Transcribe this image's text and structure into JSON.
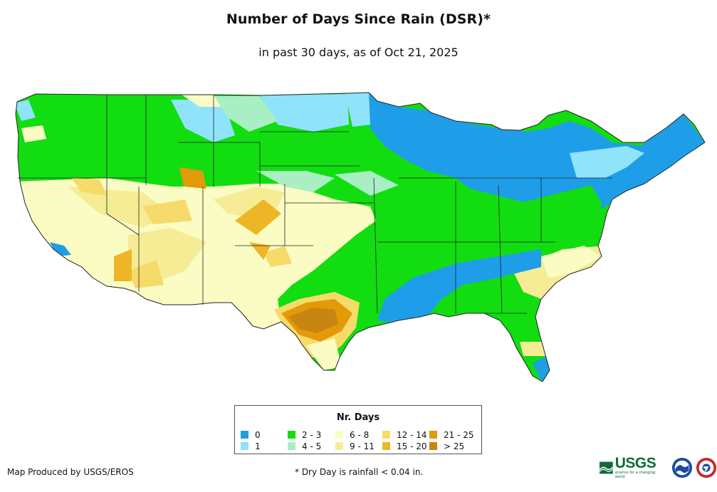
{
  "header": {
    "title": "Number of Days Since Rain (DSR)*",
    "subtitle": "in past 30 days, as of Oct 21, 2025"
  },
  "legend": {
    "title": "Nr. Days",
    "items": [
      {
        "label": "0",
        "color": "#1e9ee8"
      },
      {
        "label": "1",
        "color": "#8fe3fb"
      },
      {
        "label": "2 - 3",
        "color": "#11dd11"
      },
      {
        "label": "4 - 5",
        "color": "#a9efc4"
      },
      {
        "label": "6 - 8",
        "color": "#fafcc4"
      },
      {
        "label": "9 - 11",
        "color": "#f6ec96"
      },
      {
        "label": "12 - 14",
        "color": "#f6da6a"
      },
      {
        "label": "15 - 20",
        "color": "#eeb526"
      },
      {
        "label": "21 - 25",
        "color": "#e29a09"
      },
      {
        "label": "> 25",
        "color": "#c98511"
      }
    ]
  },
  "footer": {
    "credit": "Map Produced by USGS/EROS",
    "footnote": "* Dry Day is rainfall < 0.04 in.",
    "agency_logo": "USGS",
    "agency_tagline": "science for a changing world"
  },
  "logos": [
    "usgs-logo",
    "noaa-logo",
    "national-weather-service-logo"
  ]
}
